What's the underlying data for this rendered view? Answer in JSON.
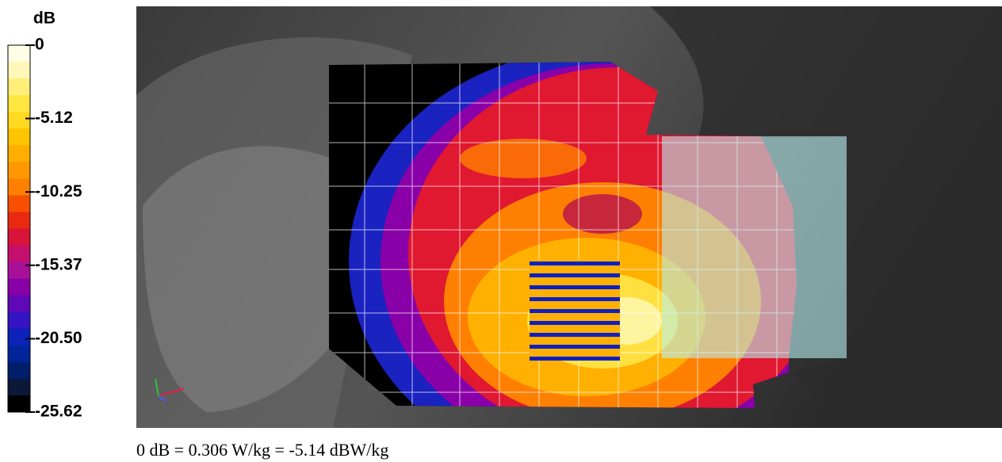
{
  "colorbar": {
    "title": "dB",
    "lim": [
      -25.62,
      0
    ],
    "ticks": [
      0,
      -5.12,
      -10.25,
      -15.37,
      {
        "value": -20.5,
        "label": "-20.50"
      },
      -25.62
    ],
    "colors": [
      "#fffde6",
      "#fff7b8",
      "#ffef78",
      "#ffe640",
      "#ffd820",
      "#ffc400",
      "#ffae00",
      "#ff9800",
      "#ff8000",
      "#f65000",
      "#ea2a10",
      "#d81438",
      "#c4106c",
      "#a8109a",
      "#8800a8",
      "#6008b8",
      "#3414c4",
      "#0c22b8",
      "#00249a",
      "#001e6c",
      "#0c1838",
      "#000000"
    ]
  },
  "caption": "0 dB = 0.306 W/kg = -5.14 dBW/kg"
}
